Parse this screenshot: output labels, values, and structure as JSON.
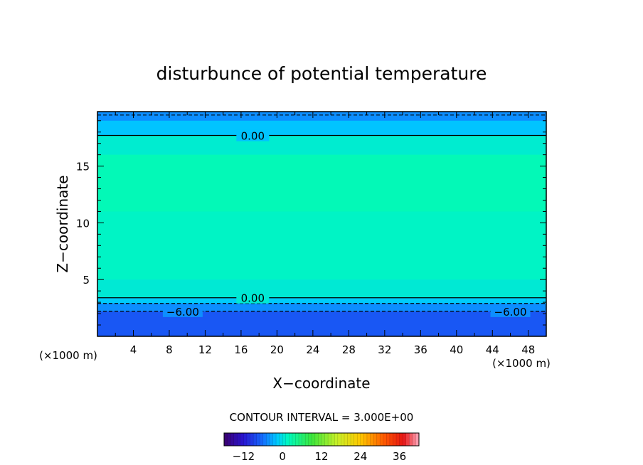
{
  "chart_data": {
    "type": "heatmap",
    "title": "disturbunce of potential temperature",
    "xlabel": "X−coordinate",
    "ylabel": "Z−coordinate",
    "x_unit": "(×1000 m)",
    "z_unit": "(×1000 m)",
    "xlim": [
      0,
      50
    ],
    "ylim": [
      0,
      19.8
    ],
    "x_ticks": [
      "4",
      "8",
      "12",
      "16",
      "20",
      "24",
      "28",
      "32",
      "36",
      "40",
      "44",
      "48"
    ],
    "x_tick_values": [
      4,
      8,
      12,
      16,
      20,
      24,
      28,
      32,
      36,
      40,
      44,
      48
    ],
    "y_ticks": [
      "5",
      "10",
      "15"
    ],
    "y_tick_values": [
      5,
      10,
      15
    ],
    "contour_interval_label": "CONTOUR INTERVAL = 3.000E+00",
    "contour_interval": 3.0,
    "contour_labels": [
      {
        "text": "0.00",
        "x": 17.3,
        "z": 17.7
      },
      {
        "text": "0.00",
        "x": 17.3,
        "z": 3.4
      },
      {
        "text": "−6.00",
        "x": 9.5,
        "z": 2.2
      },
      {
        "text": "−6.00",
        "x": 46.0,
        "z": 2.2
      }
    ],
    "contour_lines": [
      {
        "level": 0,
        "z": 17.7,
        "style": "solid"
      },
      {
        "level": 0,
        "z": 3.4,
        "style": "solid"
      },
      {
        "level": -3,
        "z": 19.5,
        "style": "dashed"
      },
      {
        "level": -3,
        "z": 2.9,
        "style": "dashed"
      },
      {
        "level": -6,
        "z": 2.2,
        "style": "dashed"
      }
    ],
    "field_bands": [
      {
        "z0": 19.0,
        "z1": 19.8,
        "value": -4.5
      },
      {
        "z0": 17.7,
        "z1": 19.0,
        "value": -2.0
      },
      {
        "z0": 16.0,
        "z1": 17.7,
        "value": 0.8
      },
      {
        "z0": 11.0,
        "z1": 16.0,
        "value": 2.2
      },
      {
        "z0": 5.0,
        "z1": 11.0,
        "value": 1.4
      },
      {
        "z0": 3.4,
        "z1": 5.0,
        "value": 0.6
      },
      {
        "z0": 2.9,
        "z1": 3.4,
        "value": -1.5
      },
      {
        "z0": 2.2,
        "z1": 2.9,
        "value": -4.5
      },
      {
        "z0": 0.0,
        "z1": 2.2,
        "value": -7.5
      }
    ],
    "colorbar": {
      "min": -18,
      "max": 42,
      "tick_labels": [
        "−12",
        "0",
        "12",
        "24",
        "36"
      ],
      "tick_values": [
        -12,
        0,
        12,
        24,
        36
      ]
    }
  }
}
